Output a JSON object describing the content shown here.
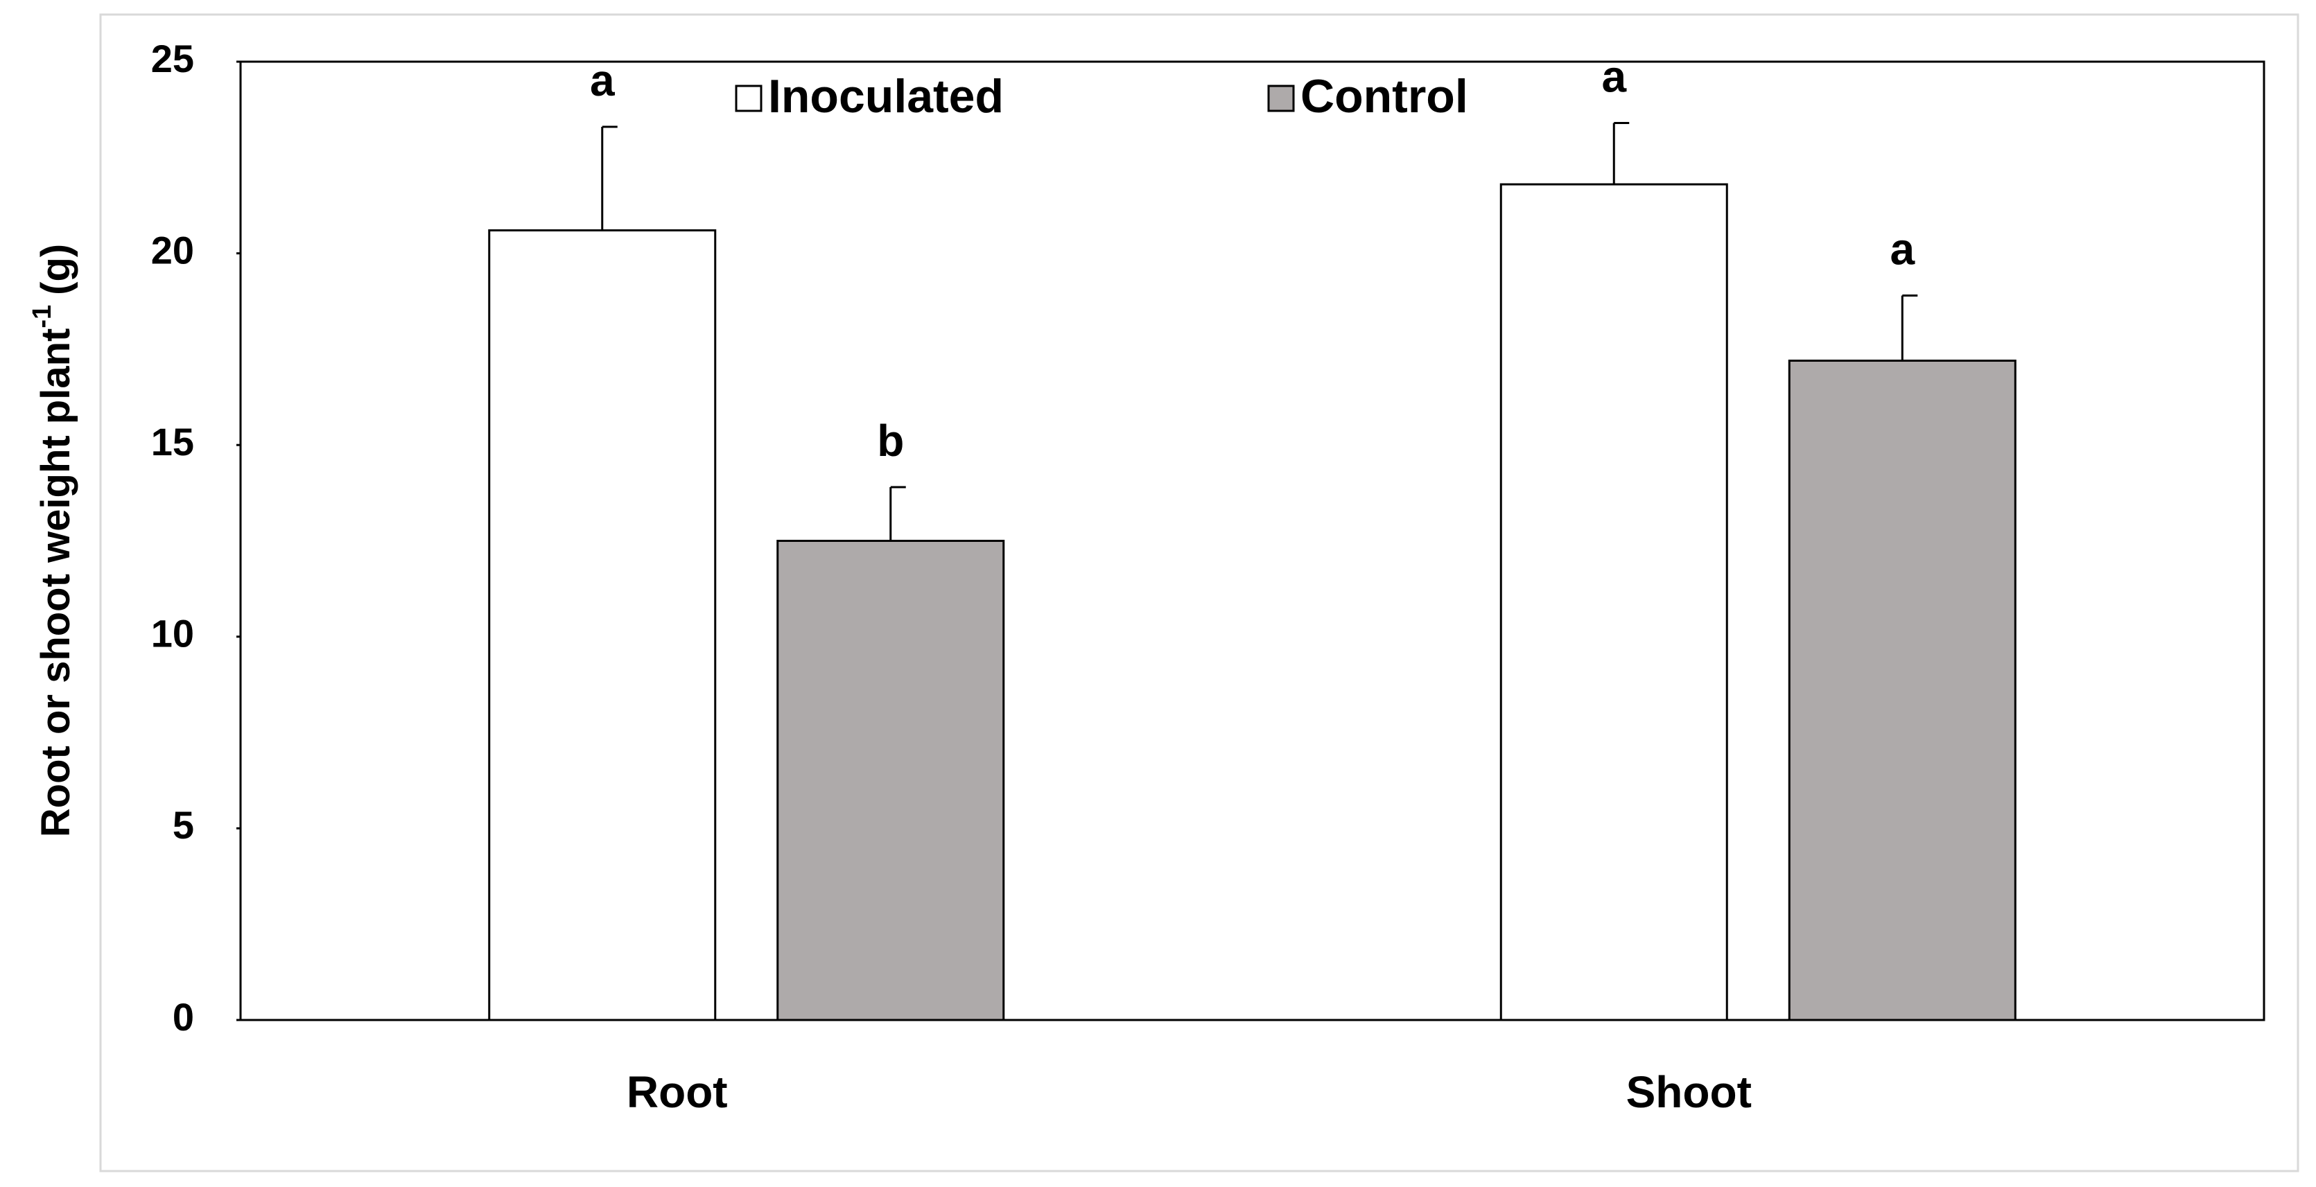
{
  "chart_data": {
    "type": "bar",
    "y_label": {
      "text": "Root or shoot weight plant",
      "superscript": "-1",
      "suffix": "(g)"
    },
    "categories": [
      "Root",
      "Shoot"
    ],
    "series": [
      {
        "name": "Inoculated",
        "color": "#ffffff",
        "values": [
          20.6,
          21.8
        ],
        "errors": [
          2.7,
          1.6
        ],
        "letters": [
          "a",
          "a"
        ]
      },
      {
        "name": "Control",
        "color": "#aeaaaa",
        "values": [
          12.5,
          17.2
        ],
        "errors": [
          1.4,
          1.7
        ],
        "letters": [
          "b",
          "a"
        ]
      }
    ],
    "ylim": [
      0,
      25
    ],
    "yticks": [
      0,
      5,
      10,
      15,
      20,
      25
    ],
    "legend": "top"
  }
}
